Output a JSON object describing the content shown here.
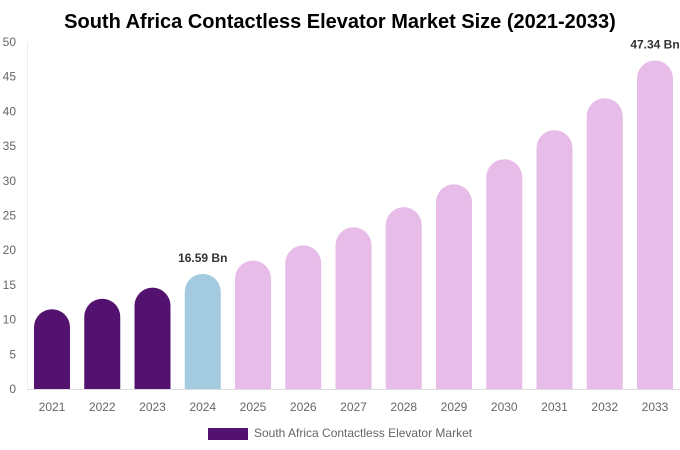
{
  "chart_data": {
    "type": "bar",
    "title": "South Africa Contactless Elevator Market Size (2021-2033)",
    "categories": [
      "2021",
      "2022",
      "2023",
      "2024",
      "2025",
      "2026",
      "2027",
      "2028",
      "2029",
      "2030",
      "2031",
      "2032",
      "2033"
    ],
    "series": [
      {
        "name": "South Africa Contactless Elevator Market",
        "values": [
          11.5,
          13.0,
          14.6,
          16.59,
          18.5,
          20.7,
          23.3,
          26.2,
          29.5,
          33.1,
          37.3,
          41.9,
          47.34
        ]
      }
    ],
    "data_labels": {
      "2024": "16.59 Bn",
      "2033": "47.34 Bn"
    },
    "ylim": [
      0,
      50
    ],
    "yticks": [
      0,
      5,
      10,
      15,
      20,
      25,
      30,
      35,
      40,
      45,
      50
    ],
    "grid": false,
    "legend_position": "bottom",
    "colors": {
      "historical": "#541270",
      "base_year": "#a3cadf",
      "forecast": "#e8bce9"
    }
  }
}
